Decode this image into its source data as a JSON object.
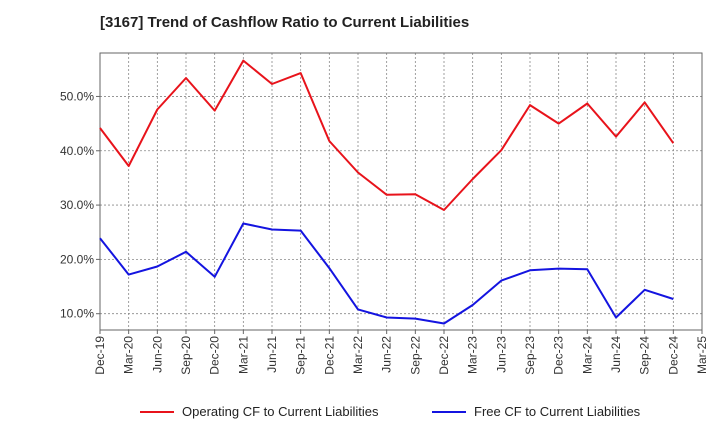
{
  "chart_data": {
    "type": "line",
    "title": "[3167]  Trend of Cashflow Ratio to Current Liabilities",
    "xlabel": "",
    "ylabel": "",
    "categories": [
      "Dec-19",
      "Mar-20",
      "Jun-20",
      "Sep-20",
      "Dec-20",
      "Mar-21",
      "Jun-21",
      "Sep-21",
      "Dec-21",
      "Mar-22",
      "Jun-22",
      "Sep-22",
      "Dec-22",
      "Mar-23",
      "Jun-23",
      "Sep-23",
      "Dec-23",
      "Mar-24",
      "Jun-24",
      "Sep-24",
      "Dec-24",
      "Mar-25"
    ],
    "yticks": [
      10,
      20,
      30,
      40,
      50
    ],
    "ytick_labels": [
      "10.0%",
      "20.0%",
      "30.0%",
      "40.0%",
      "50.0%"
    ],
    "ylim": [
      7,
      58
    ],
    "grid": true,
    "legend_position": "bottom",
    "series": [
      {
        "name": "Operating CF to Current Liabilities",
        "color": "#e8131b",
        "values": [
          44.2,
          37.2,
          47.6,
          53.4,
          47.4,
          56.6,
          52.3,
          54.3,
          41.8,
          36.0,
          31.9,
          32.0,
          29.1,
          34.8,
          40.1,
          48.4,
          45.0,
          48.7,
          42.6,
          48.9,
          41.4,
          null
        ]
      },
      {
        "name": "Free CF to Current Liabilities",
        "color": "#1414e0",
        "values": [
          23.9,
          17.2,
          18.7,
          21.4,
          16.8,
          26.6,
          25.5,
          25.3,
          18.4,
          10.8,
          9.3,
          9.1,
          8.2,
          11.6,
          16.1,
          18.0,
          18.3,
          18.2,
          9.3,
          14.4,
          12.7,
          null
        ]
      }
    ]
  }
}
